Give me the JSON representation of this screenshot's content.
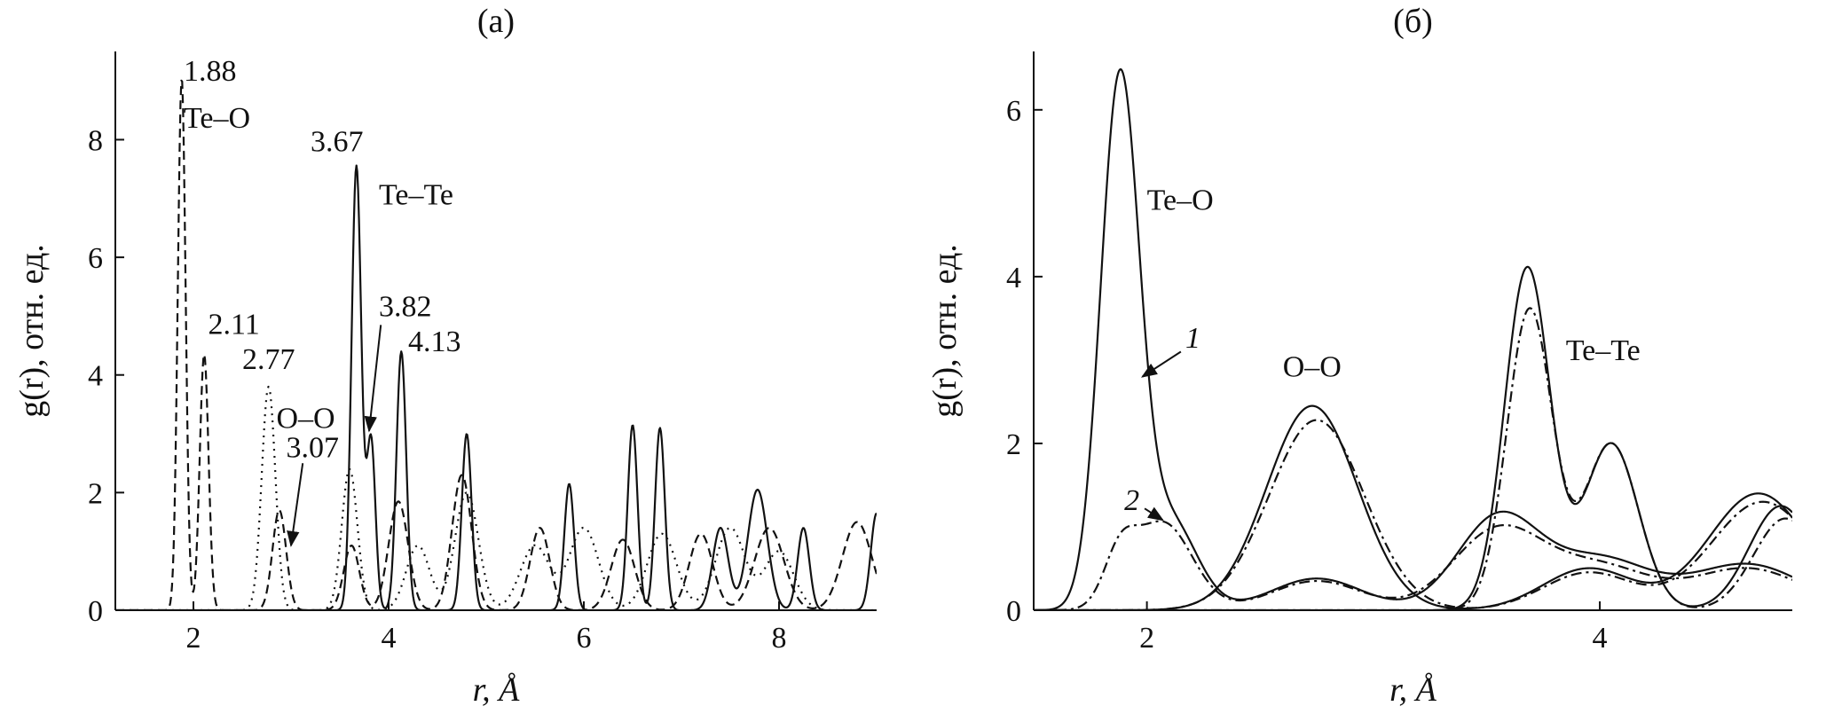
{
  "chart_data": [
    {
      "type": "line",
      "panel": "(a)",
      "title": "(a)",
      "xlabel": "r, Å",
      "ylabel": "g(r), отн. ед.",
      "xlim": [
        1.2,
        9.0
      ],
      "ylim": [
        0,
        9.5
      ],
      "x_ticks": [
        2,
        4,
        6,
        8
      ],
      "y_ticks": [
        0,
        2,
        4,
        6,
        8
      ],
      "grid": false,
      "legend": "none",
      "series": [
        {
          "label": "Te–O",
          "dash": "dashed",
          "peaks": [
            {
              "center": 1.88,
              "height": 9.05,
              "width": 0.04
            },
            {
              "center": 2.11,
              "height": 4.35,
              "width": 0.045
            },
            {
              "center": 2.88,
              "height": 1.7,
              "width": 0.07
            },
            {
              "center": 3.62,
              "height": 1.1,
              "width": 0.08
            },
            {
              "center": 4.1,
              "height": 1.85,
              "width": 0.1
            },
            {
              "center": 4.75,
              "height": 2.3,
              "width": 0.1
            },
            {
              "center": 5.55,
              "height": 1.4,
              "width": 0.1
            },
            {
              "center": 6.4,
              "height": 1.2,
              "width": 0.12
            },
            {
              "center": 7.2,
              "height": 1.3,
              "width": 0.12
            },
            {
              "center": 7.9,
              "height": 1.4,
              "width": 0.15
            },
            {
              "center": 8.8,
              "height": 1.5,
              "width": 0.15
            }
          ]
        },
        {
          "label": "O–O",
          "dash": "dotted",
          "peaks": [
            {
              "center": 2.77,
              "height": 3.8,
              "width": 0.07
            },
            {
              "center": 3.6,
              "height": 2.4,
              "width": 0.08
            },
            {
              "center": 4.3,
              "height": 1.1,
              "width": 0.12
            },
            {
              "center": 4.8,
              "height": 2.0,
              "width": 0.12
            },
            {
              "center": 5.5,
              "height": 1.1,
              "width": 0.15
            },
            {
              "center": 6.0,
              "height": 1.4,
              "width": 0.15
            },
            {
              "center": 6.8,
              "height": 1.3,
              "width": 0.15
            },
            {
              "center": 7.5,
              "height": 1.4,
              "width": 0.15
            },
            {
              "center": 8.0,
              "height": 1.0,
              "width": 0.15
            }
          ]
        },
        {
          "label": "Te–Te",
          "dash": "solid",
          "peaks": [
            {
              "center": 3.67,
              "height": 7.55,
              "width": 0.05
            },
            {
              "center": 3.82,
              "height": 2.9,
              "width": 0.045
            },
            {
              "center": 4.13,
              "height": 4.4,
              "width": 0.05
            },
            {
              "center": 4.8,
              "height": 3.0,
              "width": 0.05
            },
            {
              "center": 5.85,
              "height": 2.15,
              "width": 0.05
            },
            {
              "center": 6.5,
              "height": 3.15,
              "width": 0.05
            },
            {
              "center": 6.78,
              "height": 3.1,
              "width": 0.05
            },
            {
              "center": 7.4,
              "height": 1.4,
              "width": 0.08
            },
            {
              "center": 7.78,
              "height": 2.05,
              "width": 0.1
            },
            {
              "center": 8.25,
              "height": 1.4,
              "width": 0.06
            },
            {
              "center": 9.0,
              "height": 1.65,
              "width": 0.06
            }
          ]
        }
      ],
      "annotations": [
        {
          "text": "1.88",
          "x": 1.9,
          "y": 9.0
        },
        {
          "text": "Te–O",
          "x": 1.9,
          "y": 8.2
        },
        {
          "text": "3.67",
          "x": 3.2,
          "y": 7.8
        },
        {
          "text": "Te–Te",
          "x": 3.9,
          "y": 6.9
        },
        {
          "text": "2.11",
          "x": 2.15,
          "y": 4.7
        },
        {
          "text": "3.82",
          "x": 3.9,
          "y": 5.0
        },
        {
          "text": "4.13",
          "x": 4.2,
          "y": 4.4
        },
        {
          "text": "2.77",
          "x": 2.5,
          "y": 4.1
        },
        {
          "text": "O–O",
          "x": 2.85,
          "y": 3.1
        },
        {
          "text": "3.07",
          "x": 2.95,
          "y": 2.6
        }
      ]
    },
    {
      "type": "line",
      "panel": "(б)",
      "title": "(б)",
      "xlabel": "r, Å",
      "ylabel": "g(r), отн. ед.",
      "xlim": [
        1.5,
        4.85
      ],
      "ylim": [
        0,
        6.7
      ],
      "x_ticks": [
        2,
        4
      ],
      "y_ticks": [
        0,
        2,
        4,
        6
      ],
      "grid": false,
      "legend": "none",
      "curve_labels": [
        "1",
        "2"
      ],
      "series": [
        {
          "label": "Te–O",
          "curve": "1",
          "dash": "solid",
          "peaks": [
            {
              "center": 1.88,
              "height": 6.28,
              "width": 0.085
            },
            {
              "center": 2.1,
              "height": 1.08,
              "width": 0.12
            },
            {
              "center": 2.75,
              "height": 0.38,
              "width": 0.2
            },
            {
              "center": 3.55,
              "height": 1.1,
              "width": 0.18
            },
            {
              "center": 4.0,
              "height": 0.6,
              "width": 0.22
            },
            {
              "center": 4.65,
              "height": 0.55,
              "width": 0.25
            }
          ]
        },
        {
          "label": "Te–O",
          "curve": "2",
          "dash": "dashdot",
          "peaks": [
            {
              "center": 1.88,
              "height": 0.55,
              "width": 0.07
            },
            {
              "center": 2.07,
              "height": 1.05,
              "width": 0.13
            },
            {
              "center": 2.75,
              "height": 0.35,
              "width": 0.2
            },
            {
              "center": 3.55,
              "height": 0.95,
              "width": 0.2
            },
            {
              "center": 4.0,
              "height": 0.5,
              "width": 0.22
            },
            {
              "center": 4.65,
              "height": 0.5,
              "width": 0.25
            }
          ]
        },
        {
          "label": "O–O",
          "curve": "1",
          "dash": "solid",
          "peaks": [
            {
              "center": 2.73,
              "height": 2.45,
              "width": 0.2
            },
            {
              "center": 3.95,
              "height": 0.5,
              "width": 0.2
            },
            {
              "center": 4.7,
              "height": 1.4,
              "width": 0.22
            }
          ]
        },
        {
          "label": "O–O",
          "curve": "2",
          "dash": "dashdot",
          "peaks": [
            {
              "center": 2.75,
              "height": 2.28,
              "width": 0.21
            },
            {
              "center": 3.95,
              "height": 0.45,
              "width": 0.2
            },
            {
              "center": 4.72,
              "height": 1.3,
              "width": 0.23
            }
          ]
        },
        {
          "label": "Te–Te",
          "curve": "1",
          "dash": "solid",
          "peaks": [
            {
              "center": 3.68,
              "height": 4.1,
              "width": 0.1
            },
            {
              "center": 4.05,
              "height": 2.0,
              "width": 0.12
            },
            {
              "center": 4.8,
              "height": 1.25,
              "width": 0.14
            }
          ]
        },
        {
          "label": "Te–Te",
          "curve": "2",
          "dash": "dashdot",
          "peaks": [
            {
              "center": 3.69,
              "height": 3.6,
              "width": 0.1
            },
            {
              "center": 4.05,
              "height": 2.0,
              "width": 0.12
            },
            {
              "center": 4.82,
              "height": 1.1,
              "width": 0.14
            }
          ]
        }
      ],
      "annotations": [
        {
          "text": "Te–O",
          "x": 2.0,
          "y": 4.8
        },
        {
          "text": "O–O",
          "x": 2.6,
          "y": 2.8
        },
        {
          "text": "Te–Te",
          "x": 3.85,
          "y": 3.0
        }
      ]
    }
  ]
}
